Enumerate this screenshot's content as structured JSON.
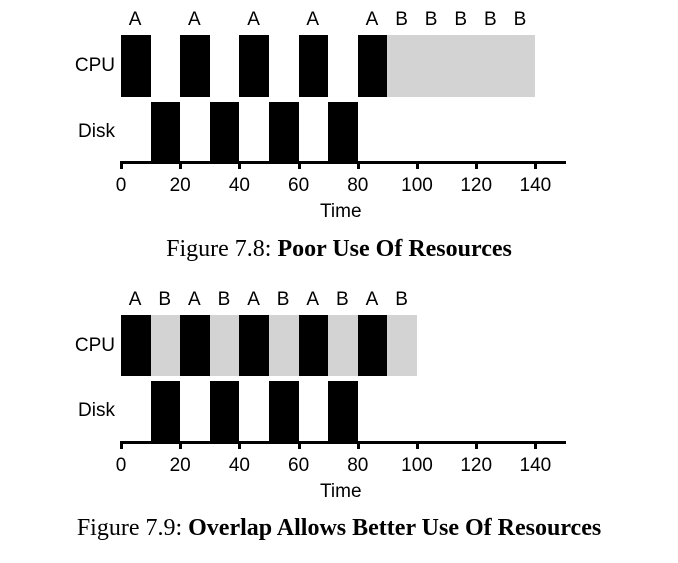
{
  "chart_data": [
    {
      "type": "gantt",
      "title": "Figure 7.8: Poor Use Of Resources",
      "caption_prefix": "Figure 7.8:",
      "caption_title": "Poor Use Of Resources",
      "xlabel": "Time",
      "xlim": [
        0,
        150
      ],
      "xticks": [
        0,
        20,
        40,
        60,
        80,
        100,
        120,
        140
      ],
      "rows": [
        "CPU",
        "Disk"
      ],
      "colors": {
        "A": "#000000",
        "B": "#d3d3d3"
      },
      "segments": {
        "CPU": [
          {
            "start": 0,
            "end": 10,
            "label": "A"
          },
          {
            "start": 20,
            "end": 30,
            "label": "A"
          },
          {
            "start": 40,
            "end": 50,
            "label": "A"
          },
          {
            "start": 60,
            "end": 70,
            "label": "A"
          },
          {
            "start": 80,
            "end": 90,
            "label": "A"
          },
          {
            "start": 90,
            "end": 100,
            "label": "B"
          },
          {
            "start": 100,
            "end": 110,
            "label": "B"
          },
          {
            "start": 110,
            "end": 120,
            "label": "B"
          },
          {
            "start": 120,
            "end": 130,
            "label": "B"
          },
          {
            "start": 130,
            "end": 140,
            "label": "B"
          }
        ],
        "Disk": [
          {
            "start": 10,
            "end": 20,
            "label": "A"
          },
          {
            "start": 30,
            "end": 40,
            "label": "A"
          },
          {
            "start": 50,
            "end": 60,
            "label": "A"
          },
          {
            "start": 70,
            "end": 80,
            "label": "A"
          }
        ]
      }
    },
    {
      "type": "gantt",
      "title": "Figure 7.9: Overlap Allows Better Use Of Resources",
      "caption_prefix": "Figure 7.9:",
      "caption_title": "Overlap Allows Better Use Of Resources",
      "xlabel": "Time",
      "xlim": [
        0,
        150
      ],
      "xticks": [
        0,
        20,
        40,
        60,
        80,
        100,
        120,
        140
      ],
      "rows": [
        "CPU",
        "Disk"
      ],
      "colors": {
        "A": "#000000",
        "B": "#d3d3d3"
      },
      "segments": {
        "CPU": [
          {
            "start": 0,
            "end": 10,
            "label": "A"
          },
          {
            "start": 10,
            "end": 20,
            "label": "B"
          },
          {
            "start": 20,
            "end": 30,
            "label": "A"
          },
          {
            "start": 30,
            "end": 40,
            "label": "B"
          },
          {
            "start": 40,
            "end": 50,
            "label": "A"
          },
          {
            "start": 50,
            "end": 60,
            "label": "B"
          },
          {
            "start": 60,
            "end": 70,
            "label": "A"
          },
          {
            "start": 70,
            "end": 80,
            "label": "B"
          },
          {
            "start": 80,
            "end": 90,
            "label": "A"
          },
          {
            "start": 90,
            "end": 100,
            "label": "B"
          }
        ],
        "Disk": [
          {
            "start": 10,
            "end": 20,
            "label": "A"
          },
          {
            "start": 30,
            "end": 40,
            "label": "A"
          },
          {
            "start": 50,
            "end": 60,
            "label": "A"
          },
          {
            "start": 70,
            "end": 80,
            "label": "A"
          }
        ]
      }
    }
  ]
}
